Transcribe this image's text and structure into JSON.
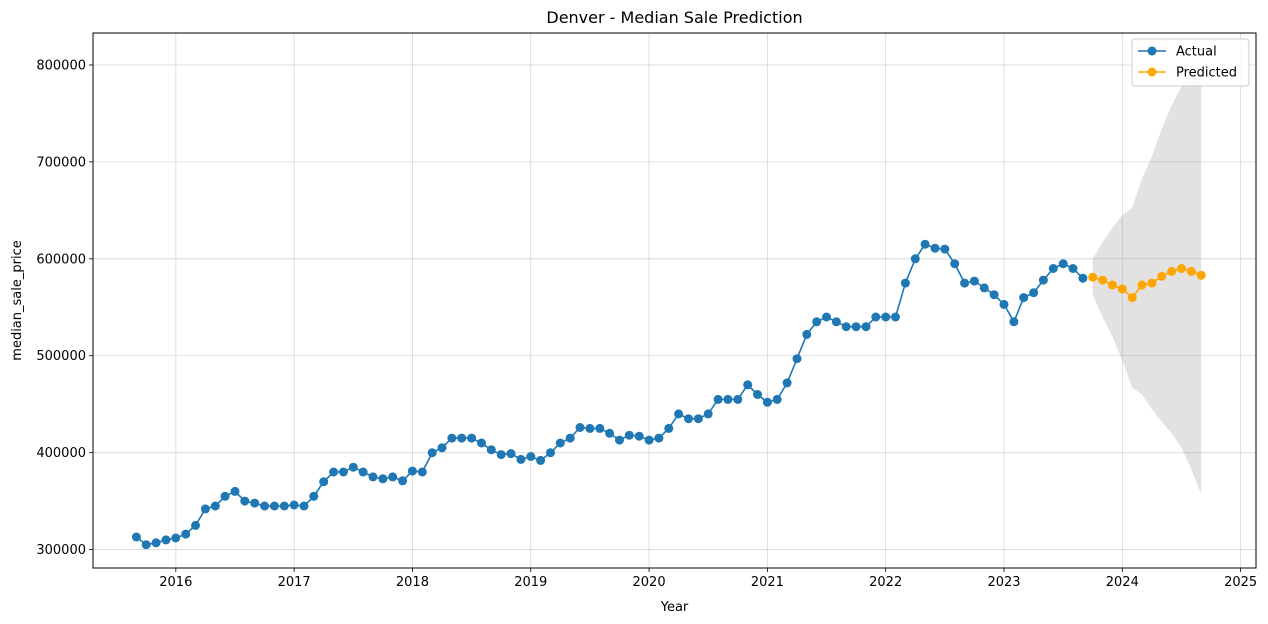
{
  "chart_data": {
    "type": "line",
    "title": "Denver - Median Sale Prediction",
    "xlabel": "Year",
    "ylabel": "median_sale_price",
    "xlim": [
      2015.3,
      2025.13
    ],
    "ylim": [
      281000,
      833000
    ],
    "x_ticks": [
      2016,
      2017,
      2018,
      2019,
      2020,
      2021,
      2022,
      2023,
      2024,
      2025
    ],
    "x_tick_labels": [
      "2016",
      "2017",
      "2018",
      "2019",
      "2020",
      "2021",
      "2022",
      "2023",
      "2024",
      "2025"
    ],
    "y_ticks": [
      300000,
      400000,
      500000,
      600000,
      700000,
      800000
    ],
    "y_tick_labels": [
      "300000",
      "400000",
      "500000",
      "600000",
      "700000",
      "800000"
    ],
    "grid": true,
    "legend_position": "top-right",
    "series": [
      {
        "name": "Actual",
        "color": "#1f77b4",
        "start": "2015-09",
        "values": [
          313000,
          305000,
          307000,
          310000,
          312000,
          316000,
          325000,
          342000,
          345000,
          355000,
          360000,
          350000,
          348000,
          345000,
          345000,
          345000,
          346000,
          345000,
          355000,
          370000,
          380000,
          380000,
          385000,
          380000,
          375000,
          373000,
          375000,
          371000,
          381000,
          380000,
          400000,
          405000,
          415000,
          415000,
          415000,
          410000,
          403000,
          398000,
          399000,
          393000,
          396000,
          392000,
          400000,
          410000,
          415000,
          426000,
          425000,
          425000,
          420000,
          413000,
          418000,
          417000,
          413000,
          415000,
          425000,
          440000,
          435000,
          435000,
          440000,
          455000,
          455000,
          455000,
          470000,
          460000,
          452000,
          455000,
          472000,
          497000,
          522000,
          535000,
          540000,
          535000,
          530000,
          530000,
          530000,
          540000,
          540000,
          540000,
          575000,
          600000,
          615000,
          611000,
          610000,
          595000,
          575000,
          577000,
          570000,
          563000,
          553000,
          535000,
          560000,
          565000,
          578000,
          590000,
          595000,
          590000,
          580000
        ]
      },
      {
        "name": "Predicted",
        "color": "#ffa500",
        "start": "2023-10",
        "values": [
          581000,
          578000,
          573000,
          569000,
          560000,
          573000,
          575000,
          582000,
          587000,
          590000,
          587000,
          583000
        ],
        "lower": [
          563000,
          540000,
          520000,
          495000,
          467000,
          460000,
          445000,
          432000,
          420000,
          405000,
          383000,
          357000
        ],
        "upper": [
          600000,
          617000,
          632000,
          645000,
          653000,
          683000,
          706000,
          734000,
          758000,
          778000,
          790000,
          795000
        ]
      }
    ]
  }
}
